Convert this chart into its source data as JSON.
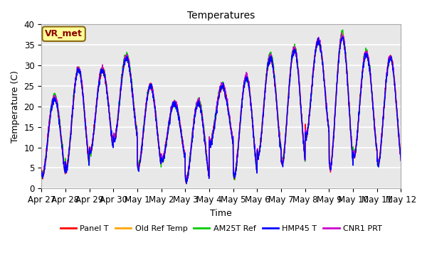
{
  "title": "Temperatures",
  "xlabel": "Time",
  "ylabel": "Temperature (C)",
  "ylim": [
    0,
    40
  ],
  "plot_bg_color": "#e8e8e8",
  "fig_bg_color": "#ffffff",
  "grid_color": "#ffffff",
  "annotation_text": "VR_met",
  "annotation_color": "#8b0000",
  "annotation_bg": "#ffff99",
  "annotation_edge": "#8b6914",
  "series_colors": {
    "Panel T": "#ff0000",
    "Old Ref Temp": "#ffa500",
    "AM25T Ref": "#00cc00",
    "HMP45 T": "#0000ff",
    "CNR1 PRT": "#cc00cc"
  },
  "xtick_labels": [
    "Apr 27",
    "Apr 28",
    "Apr 29",
    "Apr 30",
    "May 1",
    "May 2",
    "May 3",
    "May 4",
    "May 5",
    "May 6",
    "May 7",
    "May 8",
    "May 9",
    "May 10",
    "May 11",
    "May 12"
  ],
  "ytick_labels": [
    0,
    5,
    10,
    15,
    20,
    25,
    30,
    35,
    40
  ],
  "n_days": 15,
  "samples_per_day": 144
}
